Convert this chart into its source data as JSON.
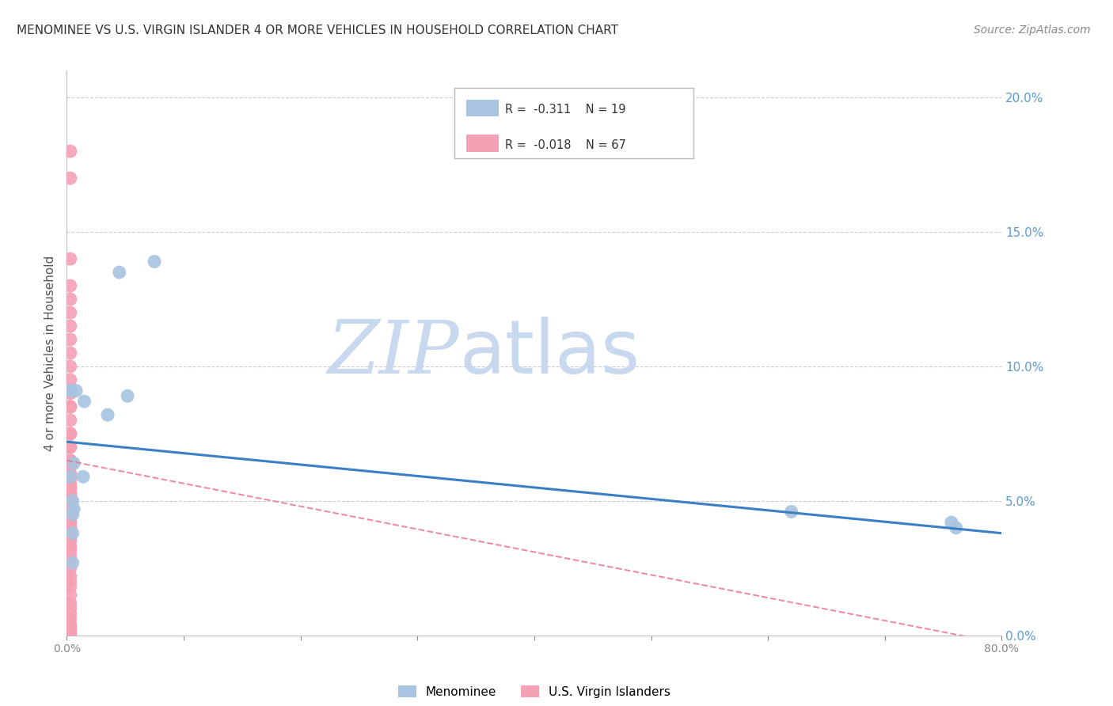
{
  "title": "MENOMINEE VS U.S. VIRGIN ISLANDER 4 OR MORE VEHICLES IN HOUSEHOLD CORRELATION CHART",
  "source": "Source: ZipAtlas.com",
  "ylabel": "4 or more Vehicles in Household",
  "xlim": [
    0.0,
    0.8
  ],
  "ylim": [
    0.0,
    0.21
  ],
  "yticks": [
    0.0,
    0.05,
    0.1,
    0.15,
    0.2
  ],
  "ytick_labels": [
    "0.0%",
    "5.0%",
    "10.0%",
    "15.0%",
    "20.0%"
  ],
  "xticks": [
    0.0,
    0.1,
    0.2,
    0.3,
    0.4,
    0.5,
    0.6,
    0.7,
    0.8
  ],
  "xtick_labels": [
    "0.0%",
    "",
    "",
    "",
    "",
    "",
    "",
    "",
    "80.0%"
  ],
  "menominee_R": -0.311,
  "menominee_N": 19,
  "usvir_R": -0.018,
  "usvir_N": 67,
  "menominee_color": "#a8c4e0",
  "usvir_color": "#f4a0b5",
  "menominee_line_color": "#3b7fc4",
  "usvir_line_color": "#e87090",
  "grid_color": "#cccccc",
  "watermark_zip_color": "#c8d8ee",
  "watermark_atlas_color": "#c8d8ee",
  "right_tick_color": "#5b9bd5",
  "menominee_x": [
    0.004,
    0.008,
    0.052,
    0.075,
    0.003,
    0.003,
    0.014,
    0.015,
    0.035,
    0.045,
    0.005,
    0.006,
    0.005,
    0.006,
    0.005,
    0.005,
    0.761,
    0.757,
    0.62
  ],
  "menominee_y": [
    0.091,
    0.091,
    0.089,
    0.139,
    0.091,
    0.059,
    0.059,
    0.087,
    0.082,
    0.135,
    0.05,
    0.047,
    0.045,
    0.064,
    0.038,
    0.027,
    0.04,
    0.042,
    0.046
  ],
  "usvir_x": [
    0.003,
    0.003,
    0.003,
    0.003,
    0.003,
    0.003,
    0.003,
    0.003,
    0.003,
    0.003,
    0.003,
    0.003,
    0.003,
    0.003,
    0.003,
    0.003,
    0.003,
    0.003,
    0.003,
    0.003,
    0.003,
    0.003,
    0.003,
    0.003,
    0.003,
    0.003,
    0.003,
    0.003,
    0.003,
    0.003,
    0.003,
    0.003,
    0.003,
    0.003,
    0.003,
    0.003,
    0.003,
    0.003,
    0.003,
    0.003,
    0.003,
    0.003,
    0.003,
    0.003,
    0.003,
    0.003,
    0.003,
    0.003,
    0.003,
    0.003,
    0.003,
    0.003,
    0.003,
    0.003,
    0.003,
    0.003,
    0.003,
    0.003,
    0.003,
    0.003,
    0.003,
    0.003,
    0.003,
    0.003,
    0.003,
    0.003,
    0.003
  ],
  "usvir_y": [
    0.18,
    0.17,
    0.14,
    0.125,
    0.13,
    0.12,
    0.115,
    0.11,
    0.105,
    0.1,
    0.095,
    0.09,
    0.085,
    0.085,
    0.08,
    0.075,
    0.075,
    0.07,
    0.07,
    0.065,
    0.065,
    0.065,
    0.063,
    0.063,
    0.06,
    0.06,
    0.058,
    0.058,
    0.056,
    0.055,
    0.055,
    0.053,
    0.053,
    0.052,
    0.052,
    0.05,
    0.05,
    0.048,
    0.047,
    0.046,
    0.045,
    0.044,
    0.043,
    0.042,
    0.04,
    0.04,
    0.038,
    0.036,
    0.035,
    0.033,
    0.032,
    0.03,
    0.028,
    0.025,
    0.022,
    0.02,
    0.018,
    0.015,
    0.012,
    0.01,
    0.008,
    0.006,
    0.004,
    0.003,
    0.002,
    0.001,
    0.0
  ],
  "background_color": "#ffffff",
  "menominee_line_x0": 0.0,
  "menominee_line_y0": 0.072,
  "menominee_line_x1": 0.8,
  "menominee_line_y1": 0.038,
  "usvir_line_x0": 0.0,
  "usvir_line_y0": 0.065,
  "usvir_line_x1": 0.8,
  "usvir_line_y1": -0.003
}
